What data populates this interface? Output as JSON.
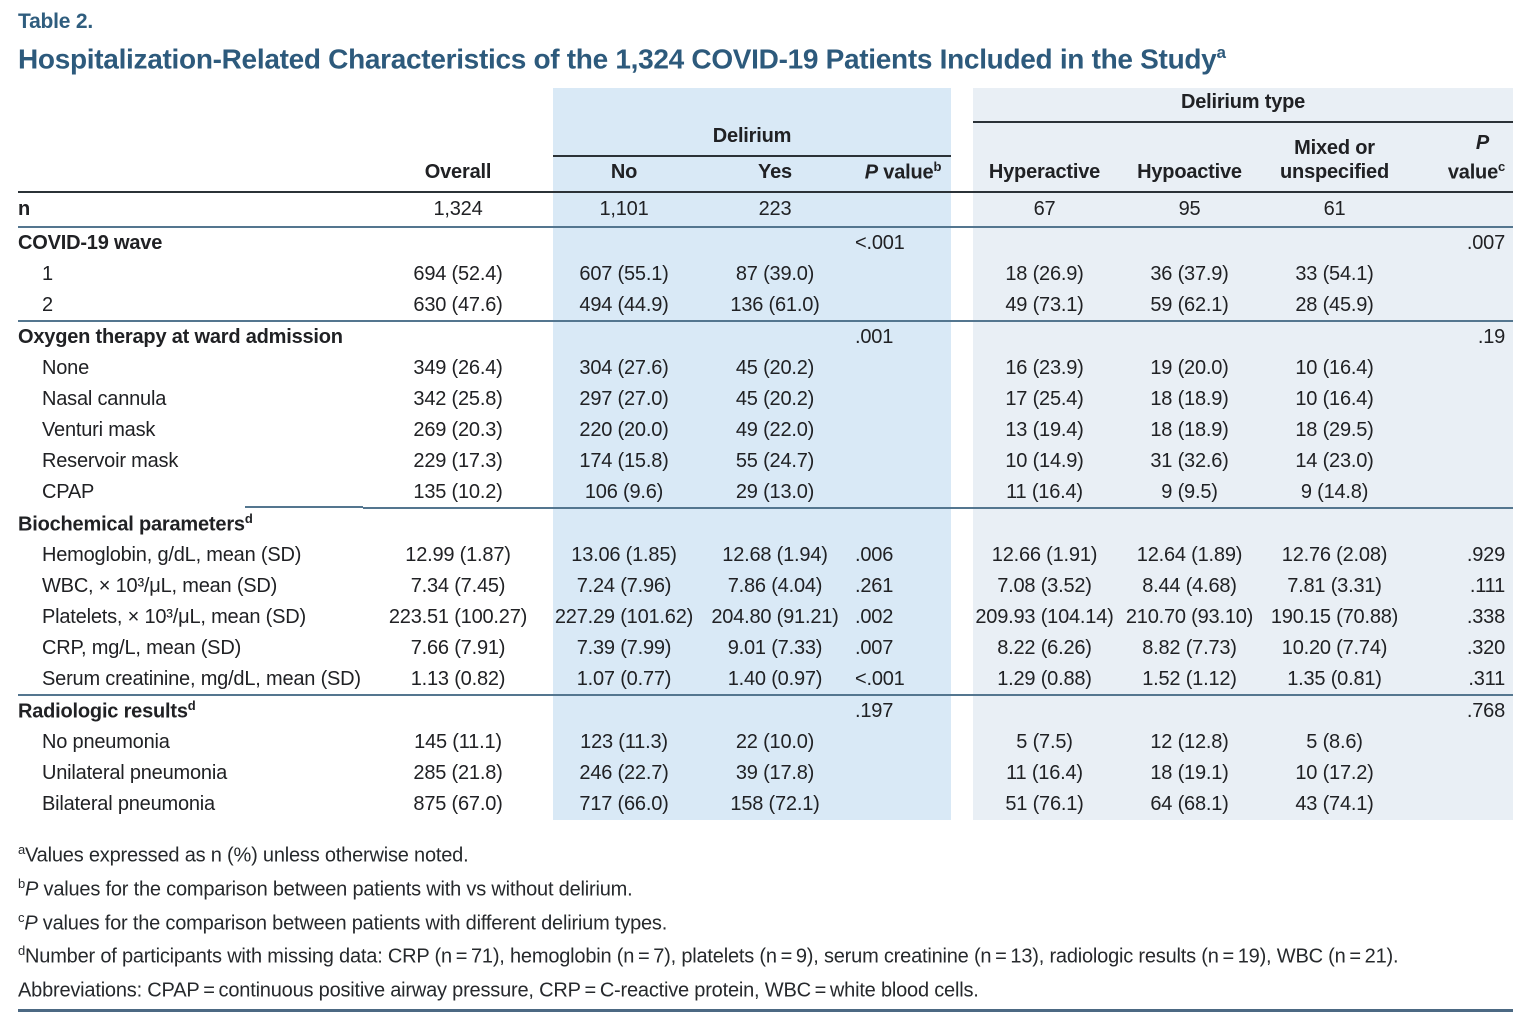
{
  "table_label": "Table 2.",
  "title": "Hospitalization-Related Characteristics of the 1,324 COVID-19 Patients Included in the Study",
  "title_sup": "a",
  "colors": {
    "title_blue": "#2d5a7c",
    "band_delirium": "#d9e9f6",
    "band_delirium_type": "#e9eff5",
    "rule_dark": "#2b3237",
    "rule_steel": "#54768f",
    "rule_bottom": "#4c6983"
  },
  "table": {
    "header": {
      "delirium_group": "Delirium",
      "delirium_type_group": "Delirium type",
      "overall": "Overall",
      "no": "No",
      "yes": "Yes",
      "p": "P",
      "p_word": " value",
      "sup_b": "b",
      "sup_c": "c",
      "hyperactive": "Hyperactive",
      "hypoactive": "Hypoactive",
      "mixed_line1": "Mixed or",
      "mixed_line2": "unspecified"
    },
    "rows": [
      {
        "type": "n",
        "label": "n",
        "cells": [
          "1,324",
          "1,101",
          "223",
          "",
          "67",
          "95",
          "61",
          ""
        ]
      },
      {
        "type": "section",
        "label": "COVID-19 wave",
        "cells": [
          "",
          "",
          "",
          "<.001",
          "",
          "",
          "",
          ".007"
        ]
      },
      {
        "type": "item",
        "label": "1",
        "cells": [
          "694 (52.4)",
          "607 (55.1)",
          "87 (39.0)",
          "",
          "18 (26.9)",
          "36 (37.9)",
          "33 (54.1)",
          ""
        ]
      },
      {
        "type": "item",
        "label": "2",
        "rule": "full",
        "cells": [
          "630 (47.6)",
          "494 (44.9)",
          "136 (61.0)",
          "",
          "49 (73.1)",
          "59 (62.1)",
          "28 (45.9)",
          ""
        ]
      },
      {
        "type": "section",
        "label": "Oxygen therapy at ward admission",
        "cells": [
          "",
          "",
          "",
          ".001",
          "",
          "",
          "",
          ".19"
        ]
      },
      {
        "type": "item",
        "label": "None",
        "cells": [
          "349 (26.4)",
          "304 (27.6)",
          "45 (20.2)",
          "",
          "16 (23.9)",
          "19 (20.0)",
          "10 (16.4)",
          ""
        ]
      },
      {
        "type": "item",
        "label": "Nasal cannula",
        "cells": [
          "342 (25.8)",
          "297 (27.0)",
          "45 (20.2)",
          "",
          "17 (25.4)",
          "18 (18.9)",
          "10 (16.4)",
          ""
        ]
      },
      {
        "type": "item",
        "label": "Venturi mask",
        "cells": [
          "269 (20.3)",
          "220 (20.0)",
          "49 (22.0)",
          "",
          "13 (19.4)",
          "18 (18.9)",
          "18 (29.5)",
          ""
        ]
      },
      {
        "type": "item",
        "label": "Reservoir mask",
        "cells": [
          "229 (17.3)",
          "174 (15.8)",
          "55 (24.7)",
          "",
          "10 (14.9)",
          "31 (32.6)",
          "14 (23.0)",
          ""
        ]
      },
      {
        "type": "item",
        "label": "CPAP",
        "rule": "inset",
        "cells": [
          "135 (10.2)",
          "106 (9.6)",
          "29 (13.0)",
          "",
          "11 (16.4)",
          "9 (9.5)",
          "9 (14.8)",
          ""
        ]
      },
      {
        "type": "section",
        "label": "Biochemical parameters",
        "label_sup": "d",
        "cells": [
          "",
          "",
          "",
          "",
          "",
          "",
          "",
          ""
        ]
      },
      {
        "type": "item",
        "label": "Hemoglobin, g/dL, mean (SD)",
        "cells": [
          "12.99 (1.87)",
          "13.06 (1.85)",
          "12.68 (1.94)",
          ".006",
          "12.66 (1.91)",
          "12.64 (1.89)",
          "12.76 (2.08)",
          ".929"
        ]
      },
      {
        "type": "item",
        "label": "WBC, × 10³/μL, mean (SD)",
        "cells": [
          "7.34 (7.45)",
          "7.24 (7.96)",
          "7.86 (4.04)",
          ".261",
          "7.08 (3.52)",
          "8.44 (4.68)",
          "7.81 (3.31)",
          ".111"
        ]
      },
      {
        "type": "item",
        "label": "Platelets, × 10³/μL, mean (SD)",
        "cells": [
          "223.51 (100.27)",
          "227.29 (101.62)",
          "204.80 (91.21)",
          ".002",
          "209.93 (104.14)",
          "210.70 (93.10)",
          "190.15 (70.88)",
          ".338"
        ]
      },
      {
        "type": "item",
        "label": "CRP, mg/L, mean (SD)",
        "cells": [
          "7.66 (7.91)",
          "7.39 (7.99)",
          "9.01 (7.33)",
          ".007",
          "8.22 (6.26)",
          "8.82 (7.73)",
          "10.20 (7.74)",
          ".320"
        ]
      },
      {
        "type": "item",
        "label": "Serum creatinine, mg/dL, mean (SD)",
        "rule": "full",
        "cells": [
          "1.13 (0.82)",
          "1.07 (0.77)",
          "1.40 (0.97)",
          "<.001",
          "1.29 (0.88)",
          "1.52 (1.12)",
          "1.35 (0.81)",
          ".311"
        ]
      },
      {
        "type": "section",
        "label": "Radiologic results",
        "label_sup": "d",
        "cells": [
          "",
          "",
          "",
          ".197",
          "",
          "",
          "",
          ".768"
        ]
      },
      {
        "type": "item",
        "label": "No pneumonia",
        "cells": [
          "145 (11.1)",
          "123 (11.3)",
          "22 (10.0)",
          "",
          "5 (7.5)",
          "12 (12.8)",
          "5 (8.6)",
          ""
        ]
      },
      {
        "type": "item",
        "label": "Unilateral pneumonia",
        "cells": [
          "285 (21.8)",
          "246 (22.7)",
          "39 (17.8)",
          "",
          "11 (16.4)",
          "18 (19.1)",
          "10 (17.2)",
          ""
        ]
      },
      {
        "type": "item",
        "label": "Bilateral pneumonia",
        "cells": [
          "875 (67.0)",
          "717 (66.0)",
          "158 (72.1)",
          "",
          "51 (76.1)",
          "64 (68.1)",
          "43 (74.1)",
          ""
        ]
      }
    ]
  },
  "footnotes": [
    {
      "sup": "a",
      "italic": "",
      "text": "Values expressed as n (%) unless otherwise noted."
    },
    {
      "sup": "b",
      "italic": "P",
      "text": " values for the comparison between patients with vs without delirium."
    },
    {
      "sup": "c",
      "italic": "P",
      "text": " values for the comparison between patients with different delirium types."
    },
    {
      "sup": "d",
      "italic": "",
      "text": "Number of participants with missing data: CRP (n = 71), hemoglobin (n = 7), platelets (n = 9), serum creatinine (n = 13), radiologic results (n = 19), WBC (n = 21)."
    },
    {
      "sup": "",
      "italic": "",
      "text": "Abbreviations: CPAP = continuous positive airway pressure, CRP = C-reactive protein, WBC = white blood cells."
    }
  ]
}
